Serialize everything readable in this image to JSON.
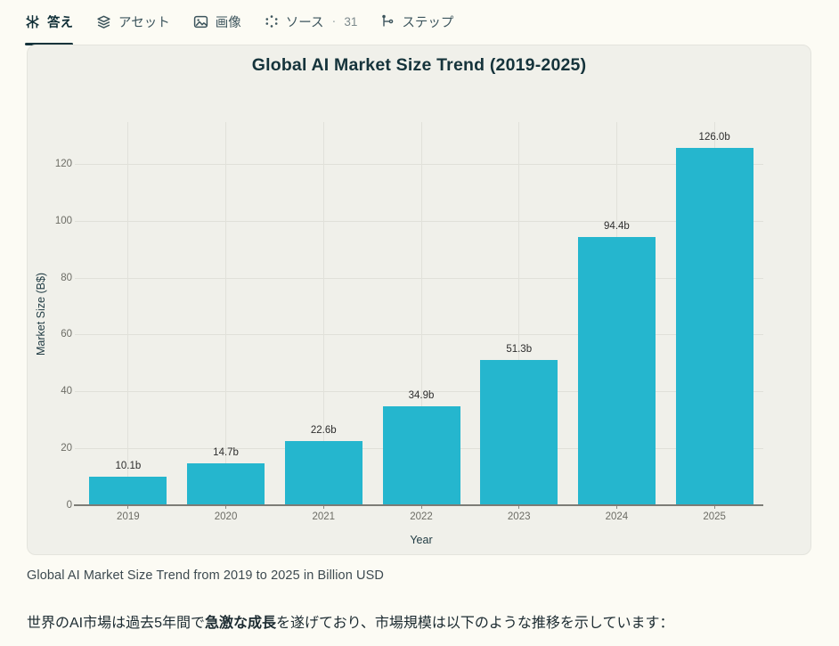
{
  "tabs": {
    "answer": {
      "label": "答え"
    },
    "assets": {
      "label": "アセット"
    },
    "images": {
      "label": "画像"
    },
    "sources": {
      "label": "ソース",
      "separator": "·",
      "count": "31"
    },
    "steps": {
      "label": "ステップ"
    }
  },
  "chart_data": {
    "type": "bar",
    "title": "Global AI Market Size Trend (2019-2025)",
    "categories": [
      "2019",
      "2020",
      "2021",
      "2022",
      "2023",
      "2024",
      "2025"
    ],
    "values": [
      10.1,
      14.7,
      22.6,
      34.9,
      51.3,
      94.4,
      126.0
    ],
    "bar_labels": [
      "10.1b",
      "14.7b",
      "22.6b",
      "34.9b",
      "51.3b",
      "94.4b",
      "126.0b"
    ],
    "xlabel": "Year",
    "ylabel": "Market Size (B$)",
    "yticks": [
      0,
      20,
      40,
      60,
      80,
      100,
      120
    ],
    "ylim": [
      0,
      135
    ],
    "grid": true,
    "legend": "none",
    "bar_color": "#25b6ce"
  },
  "caption": "Global AI Market Size Trend from 2019 to 2025 in Billion USD",
  "paragraph": {
    "before": "世界のAI市場は過去5年間で",
    "bold": "急激な成長",
    "after": "を遂げており、市場規模は以下のような推移を示しています："
  }
}
